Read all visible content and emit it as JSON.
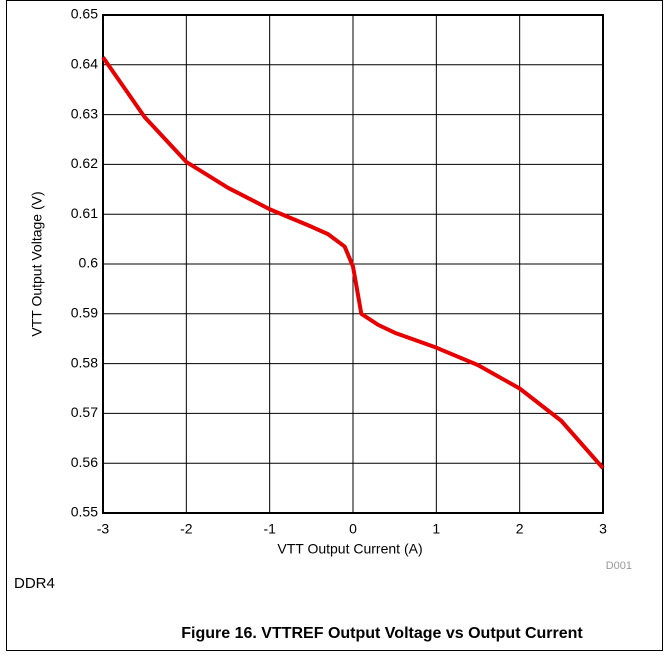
{
  "chart_data": {
    "type": "line",
    "x": [
      -3,
      -2.5,
      -2,
      -1.5,
      -1,
      -0.5,
      -0.3,
      -0.1,
      0,
      0.1,
      0.3,
      0.5,
      1,
      1.5,
      2,
      2.5,
      3
    ],
    "values": [
      0.6415,
      0.6295,
      0.6205,
      0.6153,
      0.611,
      0.6075,
      0.606,
      0.6035,
      0.5995,
      0.59,
      0.5878,
      0.5862,
      0.5832,
      0.5797,
      0.575,
      0.5685,
      0.559
    ],
    "color": "#e60000",
    "xlabel": "VTT Output Current  (A)",
    "ylabel": "VTT Output Voltage (V)",
    "xlim": [
      -3,
      3
    ],
    "xticks": [
      -3,
      -2,
      -1,
      0,
      1,
      2,
      3
    ],
    "ylim": [
      0.55,
      0.65
    ],
    "yticks": [
      0.55,
      0.56,
      0.57,
      0.58,
      0.59,
      0.6,
      0.61,
      0.62,
      0.63,
      0.64,
      0.65
    ],
    "grid": true,
    "annotation": "D001",
    "subtitle": "DDR4",
    "caption": "Figure 16. VTTREF Output Voltage vs Output Current"
  }
}
